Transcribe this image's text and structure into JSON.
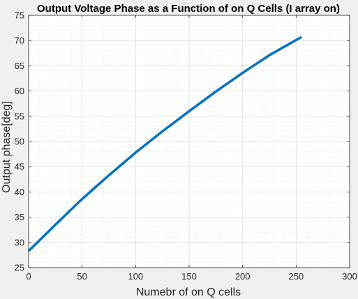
{
  "chart_data": {
    "type": "line",
    "title": "Output Voltage Phase as a Function of on Q Cells (I array on)",
    "xlabel": "Numebr of on Q cells",
    "ylabel": "Output phase[deg]",
    "xlim": [
      0,
      300
    ],
    "ylim": [
      25,
      75
    ],
    "xticks": [
      0,
      50,
      100,
      150,
      200,
      250,
      300
    ],
    "yticks": [
      25,
      30,
      35,
      40,
      45,
      50,
      55,
      60,
      65,
      70,
      75
    ],
    "grid": true,
    "minor_grid": true,
    "series": [
      {
        "color": "#0072bd",
        "x": [
          0,
          25,
          50,
          75,
          100,
          125,
          150,
          175,
          200,
          225,
          255
        ],
        "y": [
          28.3,
          33.5,
          38.6,
          43.3,
          47.8,
          52.0,
          56.0,
          59.9,
          63.6,
          67.1,
          70.7
        ]
      }
    ]
  }
}
